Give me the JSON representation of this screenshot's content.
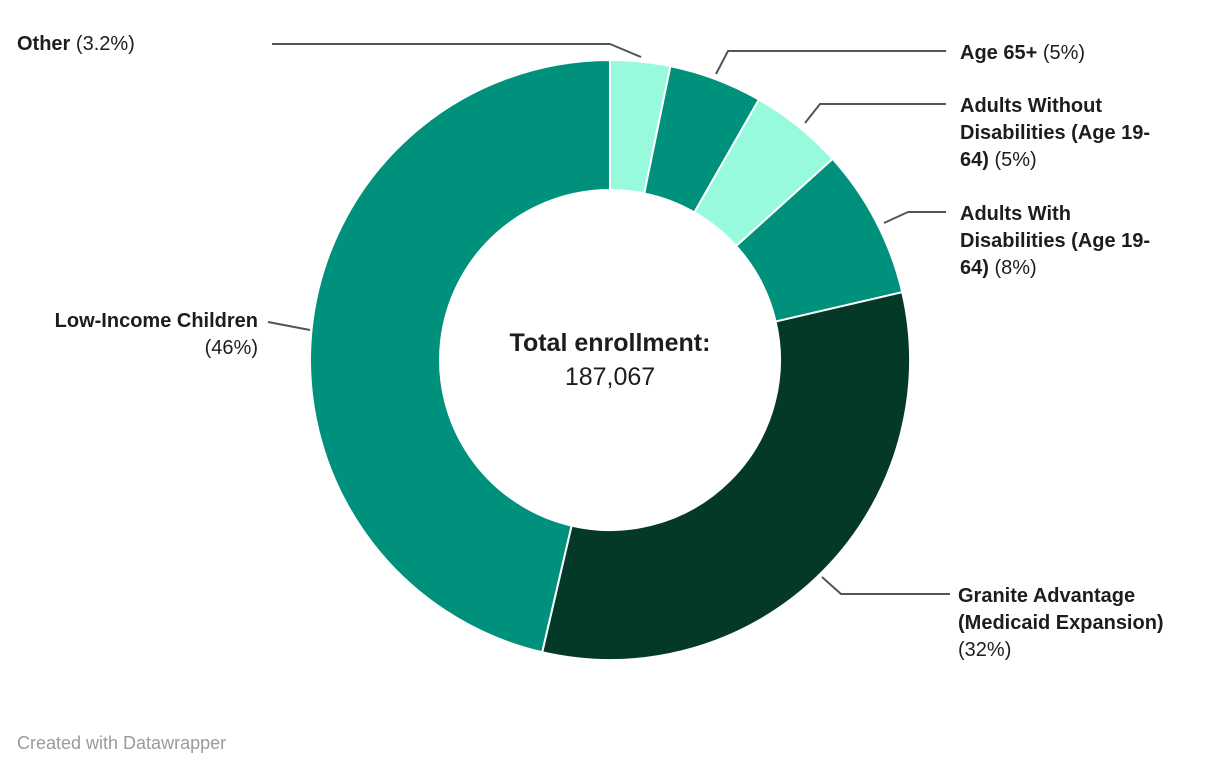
{
  "chart_data": {
    "type": "pie",
    "subtype": "donut",
    "categories": [
      "Other",
      "Age 65+",
      "Adults Without Disabilities (Age 19-64)",
      "Adults With Disabilities (Age 19-64)",
      "Granite Advantage (Medicaid Expansion)",
      "Low-Income Children"
    ],
    "values": [
      3.2,
      5,
      5,
      8,
      32,
      46
    ],
    "percent_labels": [
      "3.2%",
      "5%",
      "5%",
      "8%",
      "32%",
      "46%"
    ],
    "colors": [
      "#98fadd",
      "#00917c",
      "#98fadd",
      "#00917c",
      "#043927",
      "#00917c"
    ],
    "start_angle_deg": 0,
    "direction": "clockwise",
    "legend_position": "callouts",
    "center_label": {
      "title": "Total enrollment:",
      "value": "187,067"
    }
  },
  "labels": [
    {
      "name": "Other",
      "pct": "(3.2%)"
    },
    {
      "name": "Age 65+",
      "pct": "(5%)"
    },
    {
      "name": "Adults Without Disabilities (Age 19-64)",
      "pct": "(5%)"
    },
    {
      "name": "Adults With Disabilities (Age 19-64)",
      "pct": "(8%)"
    },
    {
      "name": "Granite Advantage (Medicaid Expansion)",
      "pct": "(32%)"
    },
    {
      "name": "Low-Income Children",
      "pct": "(46%)"
    }
  ],
  "center": {
    "title": "Total enrollment:",
    "value": "187,067"
  },
  "footer": {
    "credit": "Created with Datawrapper"
  },
  "style": {
    "slice_teal": "#00917c",
    "slice_mint": "#98fadd",
    "slice_dark_green": "#043927",
    "leader_line": "#555555",
    "text": "#1d1d1d",
    "muted_text": "#9b9b9b",
    "background": "#ffffff"
  }
}
